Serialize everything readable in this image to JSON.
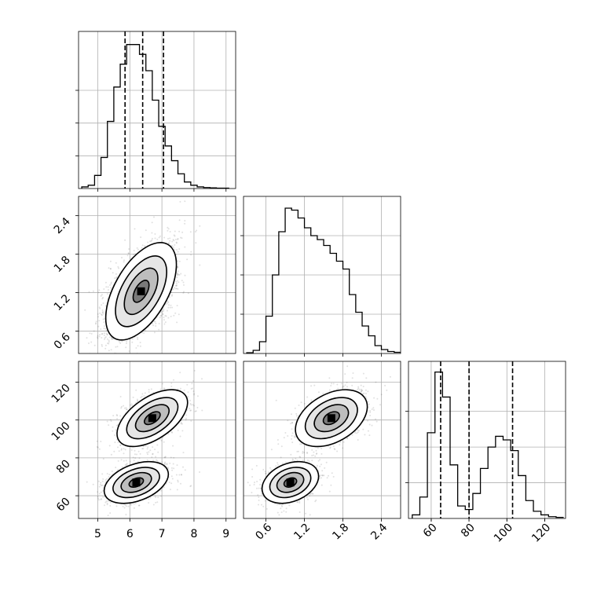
{
  "chart_data": {
    "type": "corner",
    "title": "",
    "grid": true,
    "parameters": [
      {
        "index": 0,
        "range": [
          4.4,
          9.3
        ],
        "ticks": [
          5,
          6,
          7,
          8,
          9
        ],
        "tick_labels": [
          "5",
          "6",
          "7",
          "8",
          "9"
        ]
      },
      {
        "index": 1,
        "range": [
          0.25,
          2.7
        ],
        "ticks": [
          0.6,
          1.2,
          1.8,
          2.4
        ],
        "tick_labels": [
          "0.6",
          "1.2",
          "1.8",
          "2.4"
        ]
      },
      {
        "index": 2,
        "range": [
          48,
          131
        ],
        "ticks": [
          60,
          80,
          100,
          120
        ],
        "tick_labels": [
          "60",
          "80",
          "100",
          "120"
        ]
      }
    ],
    "histograms": [
      {
        "param": 0,
        "bins": [
          4.5,
          4.7,
          4.9,
          5.1,
          5.3,
          5.5,
          5.7,
          5.9,
          6.1,
          6.3,
          6.5,
          6.7,
          6.9,
          7.1,
          7.3,
          7.5,
          7.7,
          7.9,
          8.1,
          8.3,
          8.5,
          8.7,
          8.9,
          9.1
        ],
        "counts": [
          5,
          10,
          40,
          95,
          205,
          310,
          380,
          440,
          440,
          410,
          360,
          270,
          190,
          130,
          85,
          45,
          20,
          10,
          5,
          3,
          2,
          1,
          1
        ],
        "ylim": [
          0,
          480
        ],
        "ygrid": [
          100,
          200,
          300
        ],
        "quantiles": [
          5.85,
          6.4,
          7.05
        ]
      },
      {
        "param": 1,
        "bins": [
          0.3,
          0.4,
          0.5,
          0.6,
          0.7,
          0.8,
          0.9,
          1.0,
          1.1,
          1.2,
          1.3,
          1.4,
          1.5,
          1.6,
          1.7,
          1.8,
          1.9,
          2.0,
          2.1,
          2.2,
          2.3,
          2.4,
          2.5,
          2.6,
          2.7
        ],
        "counts": [
          2,
          8,
          30,
          95,
          200,
          310,
          370,
          365,
          345,
          320,
          300,
          290,
          275,
          255,
          235,
          215,
          150,
          105,
          70,
          45,
          20,
          10,
          5,
          3
        ],
        "ylim": [
          0,
          400
        ],
        "ygrid": [
          100,
          200,
          300
        ]
      },
      {
        "param": 2,
        "bins": [
          50,
          54,
          58,
          62,
          66,
          70,
          74,
          78,
          82,
          86,
          90,
          94,
          98,
          102,
          106,
          110,
          114,
          118,
          122,
          126,
          130
        ],
        "counts": [
          10,
          60,
          240,
          410,
          340,
          150,
          35,
          25,
          70,
          140,
          200,
          230,
          220,
          190,
          120,
          50,
          20,
          10,
          5,
          3
        ],
        "ylim": [
          0,
          440
        ],
        "ygrid": [
          100,
          200,
          300
        ],
        "quantiles": [
          65,
          80,
          103
        ]
      }
    ],
    "pairs": [
      {
        "x_param": 0,
        "y_param": 1
      },
      {
        "x_param": 0,
        "y_param": 2
      },
      {
        "x_param": 1,
        "y_param": 2
      }
    ]
  }
}
